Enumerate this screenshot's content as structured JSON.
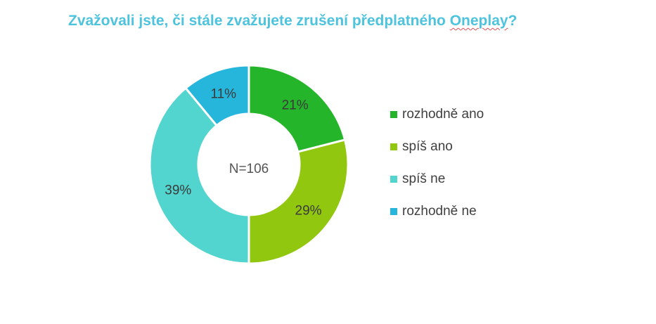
{
  "title": {
    "text": "Zvažovali jste, či stále zvažujete zrušení předplatného ",
    "brand": "Oneplay",
    "suffix": "?"
  },
  "chart_data": {
    "type": "pie",
    "variant": "donut",
    "center_label": "N=106",
    "categories": [
      "rozhodně ano",
      "spíš ano",
      "spíš ne",
      "rozhodně ne"
    ],
    "values": [
      21,
      29,
      39,
      11
    ],
    "labels": [
      "21%",
      "29%",
      "39%",
      "11%"
    ],
    "colors": [
      "#25b52a",
      "#92c70f",
      "#52d4cf",
      "#26b6dc"
    ],
    "legend_position": "right"
  }
}
